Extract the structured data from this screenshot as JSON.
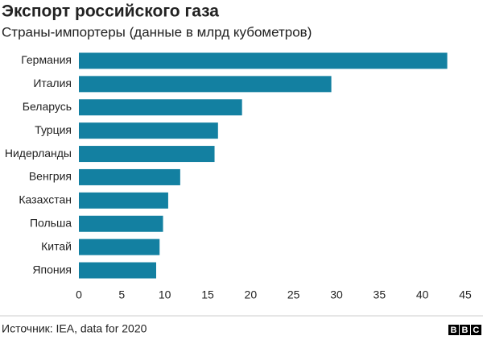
{
  "chart_data": {
    "type": "bar",
    "orientation": "horizontal",
    "title": "Экспорт российского газа",
    "subtitle": "Страны-импортеры (данные в млрд кубометров)",
    "categories": [
      "Германия",
      "Италия",
      "Беларусь",
      "Турция",
      "Нидерланды",
      "Венгрия",
      "Казахстан",
      "Польша",
      "Китай",
      "Япония"
    ],
    "values": [
      42.9,
      29.4,
      19.0,
      16.2,
      15.8,
      11.8,
      10.4,
      9.8,
      9.4,
      9.0
    ],
    "color": "#1380a1",
    "xlim": [
      0,
      45
    ],
    "xticks": [
      0,
      5,
      10,
      15,
      20,
      25,
      30,
      35,
      40,
      45
    ],
    "grid": false,
    "source": "Источник: IEA, data for 2020",
    "logo": "BBC"
  }
}
